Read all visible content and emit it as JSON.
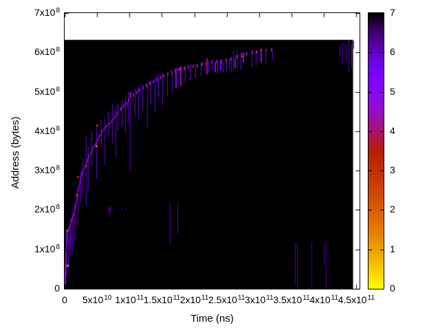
{
  "figure": {
    "xlabel": "Time (ns)",
    "ylabel": "Address (bytes)",
    "background": "#ffffff",
    "frame_color": "#000000",
    "x_ticks": [
      {
        "v": 0,
        "m": "0",
        "e": ""
      },
      {
        "v": 50000000000.0,
        "m": "5x10",
        "e": "10"
      },
      {
        "v": 100000000000.0,
        "m": "1x10",
        "e": "11"
      },
      {
        "v": 150000000000.0,
        "m": "1.5x10",
        "e": "11"
      },
      {
        "v": 200000000000.0,
        "m": "2x10",
        "e": "11"
      },
      {
        "v": 250000000000.0,
        "m": "2.5x10",
        "e": "11"
      },
      {
        "v": 300000000000.0,
        "m": "3x10",
        "e": "11"
      },
      {
        "v": 350000000000.0,
        "m": "3.5x10",
        "e": "11"
      },
      {
        "v": 400000000000.0,
        "m": "4x10",
        "e": "11"
      },
      {
        "v": 450000000000.0,
        "m": "4.5x10",
        "e": "11"
      }
    ],
    "y_ticks": [
      {
        "v": 0,
        "m": "0",
        "e": ""
      },
      {
        "v": 100000000.0,
        "m": "1x10",
        "e": "8"
      },
      {
        "v": 200000000.0,
        "m": "2x10",
        "e": "8"
      },
      {
        "v": 300000000.0,
        "m": "3x10",
        "e": "8"
      },
      {
        "v": 400000000.0,
        "m": "4x10",
        "e": "8"
      },
      {
        "v": 500000000.0,
        "m": "5x10",
        "e": "8"
      },
      {
        "v": 600000000.0,
        "m": "6x10",
        "e": "8"
      },
      {
        "v": 700000000.0,
        "m": "7x10",
        "e": "8"
      }
    ],
    "colorbar_ticks": [
      {
        "v": 0,
        "label": "0"
      },
      {
        "v": 1,
        "label": "1"
      },
      {
        "v": 2,
        "label": "2"
      },
      {
        "v": 3,
        "label": "3"
      },
      {
        "v": 4,
        "label": "4"
      },
      {
        "v": 5,
        "label": "5"
      },
      {
        "v": 6,
        "label": "6"
      },
      {
        "v": 7,
        "label": "7"
      }
    ]
  },
  "chart_data": {
    "type": "heatmap",
    "title": "",
    "xlabel": "Time (ns)",
    "ylabel": "Address (bytes)",
    "xlim": [
      0,
      455000000000.0
    ],
    "ylim": [
      0,
      700000000.0
    ],
    "clim": [
      0,
      7
    ],
    "grid": false,
    "legend": false,
    "palette": "gnuplot rgbformulae 7,5,15 (black-violet-red-yellow)",
    "data_region": {
      "t_max": 445000000000.0,
      "addr_max": 632000000.0,
      "base_value": 0
    },
    "curve": [
      [
        0,
        0
      ],
      [
        800000000.0,
        30000000.0
      ],
      [
        1500000000.0,
        60000000.0
      ],
      [
        2500000000.0,
        95000000.0
      ],
      [
        4000000000.0,
        130000000.0
      ],
      [
        5000000000.0,
        145000000.0
      ],
      [
        7000000000.0,
        155000000.0
      ],
      [
        9000000000.0,
        165000000.0
      ],
      [
        11000000000.0,
        175000000.0
      ],
      [
        13500000000.0,
        185000000.0
      ],
      [
        15000000000.0,
        195000000.0
      ],
      [
        17000000000.0,
        210000000.0
      ],
      [
        19000000000.0,
        230000000.0
      ],
      [
        21000000000.0,
        250000000.0
      ],
      [
        23000000000.0,
        265000000.0
      ],
      [
        25000000000.0,
        280000000.0
      ],
      [
        27000000000.0,
        295000000.0
      ],
      [
        30000000000.0,
        305000000.0
      ],
      [
        33000000000.0,
        315000000.0
      ],
      [
        36000000000.0,
        330000000.0
      ],
      [
        39000000000.0,
        340000000.0
      ],
      [
        43000000000.0,
        355000000.0
      ],
      [
        47000000000.0,
        365000000.0
      ],
      [
        51000000000.0,
        378000000.0
      ],
      [
        54000000000.0,
        388000000.0
      ],
      [
        58000000000.0,
        400000000.0
      ],
      [
        62000000000.0,
        408000000.0
      ],
      [
        66000000000.0,
        415000000.0
      ],
      [
        70000000000.0,
        420000000.0
      ],
      [
        74000000000.0,
        428000000.0
      ],
      [
        78000000000.0,
        438000000.0
      ],
      [
        82000000000.0,
        450000000.0
      ]
    ],
    "dashes": [
      [
        86000000000.0,
        457000000.0
      ],
      [
        90000000000.0,
        465000000.0
      ],
      [
        94000000000.0,
        472000000.0
      ],
      [
        98000000000.0,
        480000000.0
      ],
      [
        101000000000.0,
        488000000.0
      ],
      [
        105000000000.0,
        493000000.0
      ],
      [
        110000000000.0,
        500000000.0
      ],
      [
        115000000000.0,
        505000000.0
      ],
      [
        120000000000.0,
        512000000.0
      ],
      [
        125000000000.0,
        517000000.0
      ],
      [
        130000000000.0,
        522000000.0
      ],
      [
        136000000000.0,
        528000000.0
      ],
      [
        141000000000.0,
        533000000.0
      ],
      [
        147000000000.0,
        538000000.0
      ],
      [
        152000000000.0,
        542000000.0
      ],
      [
        158000000000.0,
        546000000.0
      ],
      [
        164000000000.0,
        550000000.0
      ],
      [
        170000000000.0,
        554000000.0
      ],
      [
        176000000000.0,
        558000000.0
      ],
      [
        183000000000.0,
        561000000.0
      ],
      [
        190000000000.0,
        564000000.0
      ],
      [
        197000000000.0,
        566000000.0
      ],
      [
        204000000000.0,
        568000000.0
      ],
      [
        211000000000.0,
        570000000.0
      ],
      [
        218000000000.0,
        573000000.0
      ],
      [
        226000000000.0,
        576000000.0
      ],
      [
        233000000000.0,
        578000000.0
      ],
      [
        241000000000.0,
        580000000.0
      ],
      [
        248000000000.0,
        582000000.0
      ],
      [
        256000000000.0,
        585000000.0
      ],
      [
        264000000000.0,
        590000000.0
      ],
      [
        272000000000.0,
        593000000.0
      ],
      [
        280000000000.0,
        597000000.0
      ],
      [
        288000000000.0,
        600000000.0
      ],
      [
        296000000000.0,
        602000000.0
      ],
      [
        302000000000.0,
        605000000.0
      ],
      [
        310000000000.0,
        606000000.0
      ],
      [
        318000000000.0,
        608000000.0
      ]
    ],
    "streaks": [
      [
        1000000000.0,
        90000000.0,
        10000000.0,
        1.5
      ],
      [
        2000000000.0,
        150000000.0,
        30000000.0,
        1.2
      ],
      [
        5000000000.0,
        130000000.0,
        50000000.0,
        1.0
      ],
      [
        7000000000.0,
        160000000.0,
        80000000.0,
        1.0
      ],
      [
        9000000000.0,
        180000000.0,
        100000000.0,
        1.0
      ],
      [
        12000000000.0,
        200000000.0,
        90000000.0,
        0.9
      ],
      [
        15000000000.0,
        220000000.0,
        120000000.0,
        0.9
      ],
      [
        20000000000.0,
        260000000.0,
        160000000.0,
        1.0
      ],
      [
        24000000000.0,
        300000000.0,
        220000000.0,
        1.1
      ],
      [
        28000000000.0,
        330000000.0,
        240000000.0,
        1.0
      ],
      [
        33000000000.0,
        390000000.0,
        210000000.0,
        1.1
      ],
      [
        36000000000.0,
        360000000.0,
        250000000.0,
        1.0
      ],
      [
        41000000000.0,
        400000000.0,
        310000000.0,
        1.3
      ],
      [
        49000000000.0,
        415000000.0,
        280000000.0,
        1.2
      ],
      [
        56000000000.0,
        430000000.0,
        360000000.0,
        1.3
      ],
      [
        61000000000.0,
        435000000.0,
        315000000.0,
        1.1
      ],
      [
        67000000000.0,
        450000000.0,
        385000000.0,
        1.4
      ],
      [
        73000000000.0,
        470000000.0,
        370000000.0,
        1.2
      ],
      [
        78000000000.0,
        465000000.0,
        330000000.0,
        1.0
      ],
      [
        82000000000.0,
        470000000.0,
        400000000.0,
        1.4
      ],
      [
        88000000000.0,
        480000000.0,
        410000000.0,
        1.3
      ],
      [
        93000000000.0,
        490000000.0,
        395000000.0,
        1.2
      ],
      [
        98000000000.0,
        500000000.0,
        420000000.0,
        1.4
      ],
      [
        101000000000.0,
        505000000.0,
        300000000.0,
        1.0
      ],
      [
        108000000000.0,
        510000000.0,
        440000000.0,
        1.3
      ],
      [
        114000000000.0,
        515000000.0,
        430000000.0,
        1.2
      ],
      [
        120000000000.0,
        520000000.0,
        455000000.0,
        1.4
      ],
      [
        127000000000.0,
        525000000.0,
        410000000.0,
        1.1
      ],
      [
        133000000000.0,
        530000000.0,
        470000000.0,
        1.5
      ],
      [
        139000000000.0,
        535000000.0,
        450000000.0,
        1.2
      ],
      [
        144000000000.0,
        545000000.0,
        485000000.0,
        1.5
      ],
      [
        151000000000.0,
        550000000.0,
        465000000.0,
        1.2
      ],
      [
        158000000000.0,
        550000000.0,
        490000000.0,
        1.4
      ],
      [
        165000000000.0,
        555000000.0,
        500000000.0,
        1.3
      ],
      [
        171000000000.0,
        560000000.0,
        510000000.0,
        2.0
      ],
      [
        178000000000.0,
        565000000.0,
        515000000.0,
        2.3
      ],
      [
        186000000000.0,
        565000000.0,
        525000000.0,
        1.3
      ],
      [
        194000000000.0,
        570000000.0,
        530000000.0,
        1.4
      ],
      [
        202000000000.0,
        570000000.0,
        535000000.0,
        1.5
      ],
      [
        210000000000.0,
        575000000.0,
        540000000.0,
        1.3
      ],
      [
        218000000000.0,
        585000000.0,
        545000000.0,
        2.5
      ],
      [
        222000000000.0,
        580000000.0,
        550000000.0,
        1.5
      ],
      [
        227000000000.0,
        580000000.0,
        555000000.0,
        1.2
      ],
      [
        231000000000.0,
        575000000.0,
        550000000.0,
        1.8
      ],
      [
        235000000000.0,
        580000000.0,
        545000000.0,
        1.3
      ],
      [
        240000000000.0,
        580000000.0,
        555000000.0,
        2.0
      ],
      [
        244000000000.0,
        575000000.0,
        550000000.0,
        1.4
      ],
      [
        249000000000.0,
        580000000.0,
        550000000.0,
        1.7
      ],
      [
        253000000000.0,
        585000000.0,
        555000000.0,
        1.3
      ],
      [
        257000000000.0,
        580000000.0,
        550000000.0,
        1.5
      ],
      [
        262000000000.0,
        585000000.0,
        560000000.0,
        1.8
      ],
      [
        260000000000.0,
        605000000.0,
        550000000.0,
        1.2
      ],
      [
        266000000000.0,
        605000000.0,
        560000000.0,
        1.0
      ],
      [
        271000000000.0,
        600000000.0,
        555000000.0,
        1.3
      ],
      [
        275000000000.0,
        600000000.0,
        575000000.0,
        2.5
      ],
      [
        288000000000.0,
        605000000.0,
        560000000.0,
        1.2
      ],
      [
        295000000000.0,
        605000000.0,
        565000000.0,
        1.2
      ],
      [
        302000000000.0,
        610000000.0,
        575000000.0,
        2.2
      ],
      [
        310000000000.0,
        605000000.0,
        570000000.0,
        1.2
      ],
      [
        320000000000.0,
        610000000.0,
        580000000.0,
        1.1
      ],
      [
        68000000000.0,
        210000000.0,
        195000000.0,
        1.2
      ],
      [
        70000000000.0,
        205000000.0,
        185000000.0,
        1.0
      ],
      [
        72000000000.0,
        210000000.0,
        200000000.0,
        0.9
      ],
      [
        83000000000.0,
        206000000.0,
        200000000.0,
        0.8
      ],
      [
        88000000000.0,
        206000000.0,
        200000000.0,
        0.8
      ],
      [
        94000000000.0,
        206000000.0,
        200000000.0,
        0.7
      ],
      [
        162000000000.0,
        220000000.0,
        115000000.0,
        0.9
      ],
      [
        174000000000.0,
        220000000.0,
        140000000.0,
        0.9
      ],
      [
        355000000000.0,
        118000000.0,
        12000000.0,
        0.8
      ],
      [
        358000000000.0,
        118000000.0,
        2000000.0,
        0.7
      ],
      [
        381000000000.0,
        118000000.0,
        2000000.0,
        0.8
      ],
      [
        400000000000.0,
        118000000.0,
        60000000.0,
        0.7
      ],
      [
        403000000000.0,
        118000000.0,
        2000000.0,
        0.7
      ],
      [
        424000000000.0,
        620000000.0,
        590000000.0,
        1.2
      ],
      [
        429000000000.0,
        625000000.0,
        570000000.0,
        1.0
      ],
      [
        434000000000.0,
        620000000.0,
        580000000.0,
        1.3
      ],
      [
        438000000000.0,
        630000000.0,
        550000000.0,
        1.0
      ],
      [
        442000000000.0,
        625000000.0,
        560000000.0,
        1.5
      ],
      [
        445000000000.0,
        630000000.0,
        610000000.0,
        1.3
      ]
    ],
    "hotspots": [
      [
        3200000000.0,
        148000000.0,
        4.5
      ],
      [
        4500000000.0,
        60000000.0,
        6
      ],
      [
        18000000000.0,
        240000000.0,
        4
      ],
      [
        20000000000.0,
        285000000.0,
        3.5
      ],
      [
        33000000000.0,
        312000000.0,
        3.5
      ],
      [
        49000000000.0,
        363000000.0,
        5
      ],
      [
        50000000000.0,
        415000000.0,
        4
      ],
      [
        101000000000.0,
        495000000.0,
        3.3
      ],
      [
        175000000000.0,
        557000000.0,
        3.2
      ],
      [
        218000000000.0,
        572000000.0,
        3.3
      ],
      [
        275000000000.0,
        590000000.0,
        3
      ],
      [
        302000000000.0,
        608000000.0,
        3
      ]
    ]
  }
}
